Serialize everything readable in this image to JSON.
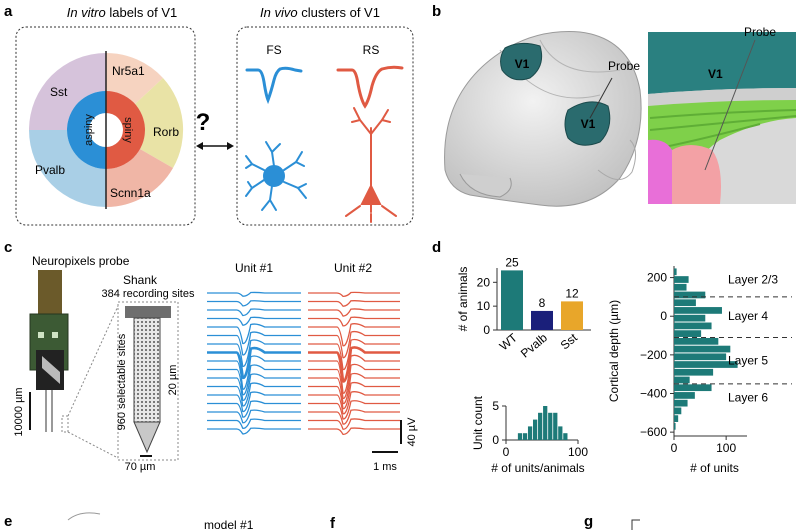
{
  "panels": {
    "a": "a",
    "b": "b",
    "c": "c",
    "d": "d",
    "e": "e",
    "f": "f",
    "g": "g"
  },
  "panel_a": {
    "title_left_italic": "In vitro",
    "title_left_rest": " labels of V1",
    "title_right_italic": "In vivo",
    "title_right_rest": " clusters of V1",
    "inner_left": "aspiny",
    "inner_right": "spiny",
    "outer_labels": [
      "Sst",
      "Pvalb",
      "Nr5a1",
      "Rorb",
      "Scnn1a"
    ],
    "question": "?",
    "cluster_fs": "FS",
    "cluster_rs": "RS",
    "colors": {
      "fs": "#2b8fd6",
      "rs": "#e05a43"
    }
  },
  "panel_b": {
    "v1_label": "V1",
    "probe_label": "Probe"
  },
  "panel_c": {
    "probe_title": "Neuropixels probe",
    "shank_title": "Shank",
    "shank_sub": "384 recording sites",
    "selectable": "960 selectable sites",
    "scale_20um": "20 µm",
    "scale_70um": "70 µm",
    "scale_10000um": "10000 µm",
    "unit1": "Unit #1",
    "unit2": "Unit #2",
    "scale_40uv": "40 µV",
    "scale_1ms": "1 ms"
  },
  "chart_data": [
    {
      "type": "bar",
      "title": "",
      "categories": [
        "WT",
        "Pvalb",
        "Sst"
      ],
      "values": [
        25,
        8,
        12
      ],
      "data_labels": [
        "25",
        "8",
        "12"
      ],
      "ylabel": "# of animals",
      "xlabel": "",
      "ylim": [
        0,
        26
      ],
      "yticks": [
        0,
        10,
        20
      ],
      "colors": [
        "#1d7a78",
        "#1a1f7a",
        "#e8a62a"
      ]
    },
    {
      "type": "bar",
      "title": "",
      "xlabel": "# of units/animals",
      "ylabel": "Unit count",
      "x": [
        20,
        27,
        34,
        41,
        48,
        55,
        62,
        69,
        76,
        83
      ],
      "values": [
        1,
        1,
        2,
        3,
        4,
        5,
        4,
        4,
        2,
        1
      ],
      "xticks": [
        0,
        100
      ],
      "yticks": [
        0,
        5
      ],
      "xlim": [
        0,
        100
      ],
      "ylim": [
        0,
        5
      ],
      "color": "#1d7a78"
    },
    {
      "type": "bar",
      "orientation": "horizontal",
      "title": "",
      "xlabel": "# of units",
      "ylabel": "Cortical depth (µm)",
      "depths": [
        230,
        190,
        150,
        110,
        70,
        30,
        -10,
        -50,
        -90,
        -130,
        -170,
        -210,
        -250,
        -290,
        -330,
        -370,
        -410,
        -450,
        -490,
        -530,
        -570
      ],
      "values": [
        5,
        28,
        24,
        60,
        42,
        92,
        60,
        72,
        52,
        85,
        108,
        100,
        122,
        75,
        30,
        72,
        40,
        26,
        14,
        8,
        3
      ],
      "ylim": [
        -620,
        260
      ],
      "xlim": [
        0,
        140
      ],
      "yticks": [
        200,
        0,
        -200,
        -400,
        -600
      ],
      "ytick_labels": [
        "200",
        "0",
        "−200",
        "−400",
        "−600"
      ],
      "xticks": [
        0,
        100
      ],
      "layer_boundaries": [
        100,
        -110,
        -350
      ],
      "layer_labels": [
        "Layer 2/3",
        "Layer 4",
        "Layer 5",
        "Layer 6"
      ],
      "layer_label_depths": [
        190,
        0,
        -230,
        -420
      ],
      "color": "#1d7a78"
    }
  ],
  "panel_e": {
    "model_label": "model #1"
  }
}
